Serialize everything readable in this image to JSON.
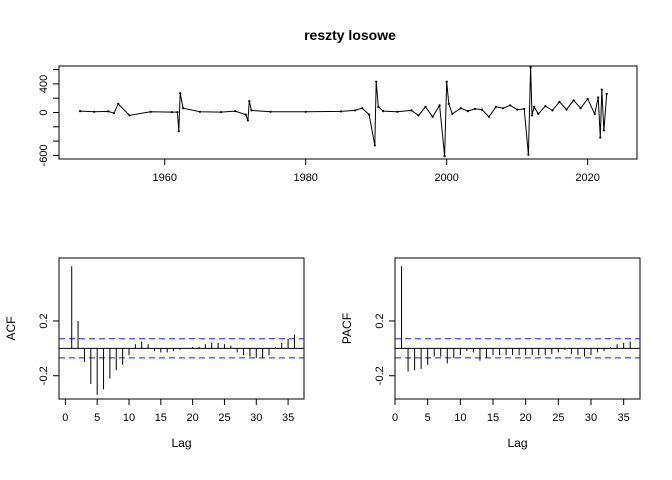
{
  "chart_data": [
    {
      "type": "line",
      "title": "reszty losowe",
      "xlabel": "",
      "ylabel": "",
      "xlim": [
        1945,
        2027
      ],
      "ylim": [
        -650,
        650
      ],
      "x_ticks": [
        "1960",
        "1980",
        "2000",
        "2020"
      ],
      "y_ticks": [
        "-600",
        "0",
        "400"
      ],
      "series": [
        {
          "x": [
            1948,
            1950,
            1952,
            1952.8,
            1953.4,
            1955,
            1958,
            1961,
            1961.8,
            1962.0,
            1962.2,
            1962.6,
            1965,
            1968,
            1970,
            1971.5,
            1971.8,
            1972.0,
            1972.3,
            1975,
            1980,
            1985,
            1987,
            1988,
            1989,
            1989.8,
            1990.0,
            1990.3,
            1991,
            1993,
            1995,
            1996,
            1997,
            1998,
            1999,
            1999.7,
            2000.0,
            2000.3,
            2000.8,
            2002,
            2003,
            2004,
            2005,
            2006,
            2007,
            2008,
            2009,
            2010,
            2011,
            2011.6,
            2011.9,
            2012.1,
            2012.4,
            2013,
            2014,
            2015,
            2016,
            2017,
            2018,
            2019,
            2020,
            2021,
            2021.5,
            2021.8,
            2022.0,
            2022.3,
            2022.7
          ],
          "y": [
            20,
            10,
            15,
            -10,
            120,
            -40,
            10,
            5,
            5,
            -260,
            270,
            60,
            10,
            5,
            20,
            -30,
            -110,
            160,
            30,
            10,
            10,
            15,
            30,
            60,
            -30,
            -460,
            430,
            80,
            20,
            10,
            30,
            -40,
            80,
            -60,
            100,
            -610,
            430,
            120,
            -20,
            60,
            20,
            50,
            40,
            -60,
            80,
            60,
            100,
            40,
            50,
            -590,
            630,
            -40,
            80,
            -20,
            90,
            30,
            150,
            40,
            170,
            60,
            190,
            -20,
            210,
            -350,
            320,
            -250,
            260
          ]
        }
      ]
    },
    {
      "type": "bar",
      "title": "",
      "xlabel": "Lag",
      "ylabel": "ACF",
      "xlim": [
        -1,
        37.5
      ],
      "ylim": [
        -0.37,
        0.66
      ],
      "x_ticks": [
        "0",
        "5",
        "10",
        "15",
        "20",
        "25",
        "30",
        "35"
      ],
      "y_ticks": [
        "-0.2",
        "0.2"
      ],
      "confidence_band": 0.07,
      "lags": [
        1,
        2,
        3,
        4,
        5,
        6,
        7,
        8,
        9,
        10,
        11,
        12,
        13,
        14,
        15,
        16,
        17,
        18,
        19,
        20,
        21,
        22,
        23,
        24,
        25,
        26,
        27,
        28,
        29,
        30,
        31,
        32,
        33,
        34,
        35,
        36
      ],
      "values": [
        0.6,
        0.2,
        -0.1,
        -0.26,
        -0.34,
        -0.3,
        -0.22,
        -0.16,
        -0.12,
        -0.05,
        0.03,
        0.05,
        0.03,
        -0.02,
        -0.03,
        -0.03,
        -0.02,
        -0.01,
        0.0,
        0.01,
        0.01,
        0.03,
        0.04,
        0.04,
        0.03,
        0.02,
        -0.03,
        -0.05,
        -0.06,
        -0.07,
        -0.07,
        -0.05,
        0.01,
        0.04,
        0.07,
        0.1
      ]
    },
    {
      "type": "bar",
      "title": "",
      "xlabel": "Lag",
      "ylabel": "PACF",
      "xlim": [
        0,
        37.5
      ],
      "ylim": [
        -0.37,
        0.66
      ],
      "x_ticks": [
        "0",
        "5",
        "10",
        "15",
        "20",
        "25",
        "30",
        "35"
      ],
      "y_ticks": [
        "-0.2",
        "0.2"
      ],
      "confidence_band": 0.07,
      "lags": [
        1,
        2,
        3,
        4,
        5,
        6,
        7,
        8,
        9,
        10,
        11,
        12,
        13,
        14,
        15,
        16,
        17,
        18,
        19,
        20,
        21,
        22,
        23,
        24,
        25,
        26,
        27,
        28,
        29,
        30,
        31,
        32,
        33,
        34,
        35,
        36
      ],
      "values": [
        0.6,
        -0.17,
        -0.16,
        -0.15,
        -0.12,
        -0.06,
        -0.06,
        -0.11,
        -0.07,
        -0.05,
        -0.02,
        -0.03,
        -0.09,
        -0.07,
        -0.05,
        -0.05,
        -0.05,
        -0.05,
        -0.05,
        -0.05,
        -0.05,
        -0.05,
        -0.05,
        -0.04,
        -0.03,
        -0.01,
        -0.04,
        -0.05,
        -0.06,
        -0.05,
        -0.03,
        -0.02,
        0.01,
        0.03,
        0.04,
        0.05
      ]
    }
  ]
}
